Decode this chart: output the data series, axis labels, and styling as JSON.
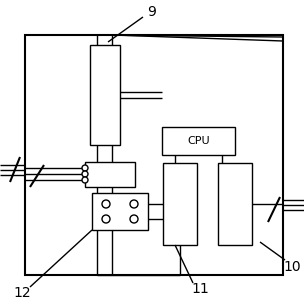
{
  "fig_width": 3.04,
  "fig_height": 3.07,
  "dpi": 100,
  "bg_color": "#ffffff",
  "line_color": "#000000",
  "label_9": "9",
  "label_10": "10",
  "label_11": "11",
  "label_12": "12",
  "label_cpu": "CPU"
}
